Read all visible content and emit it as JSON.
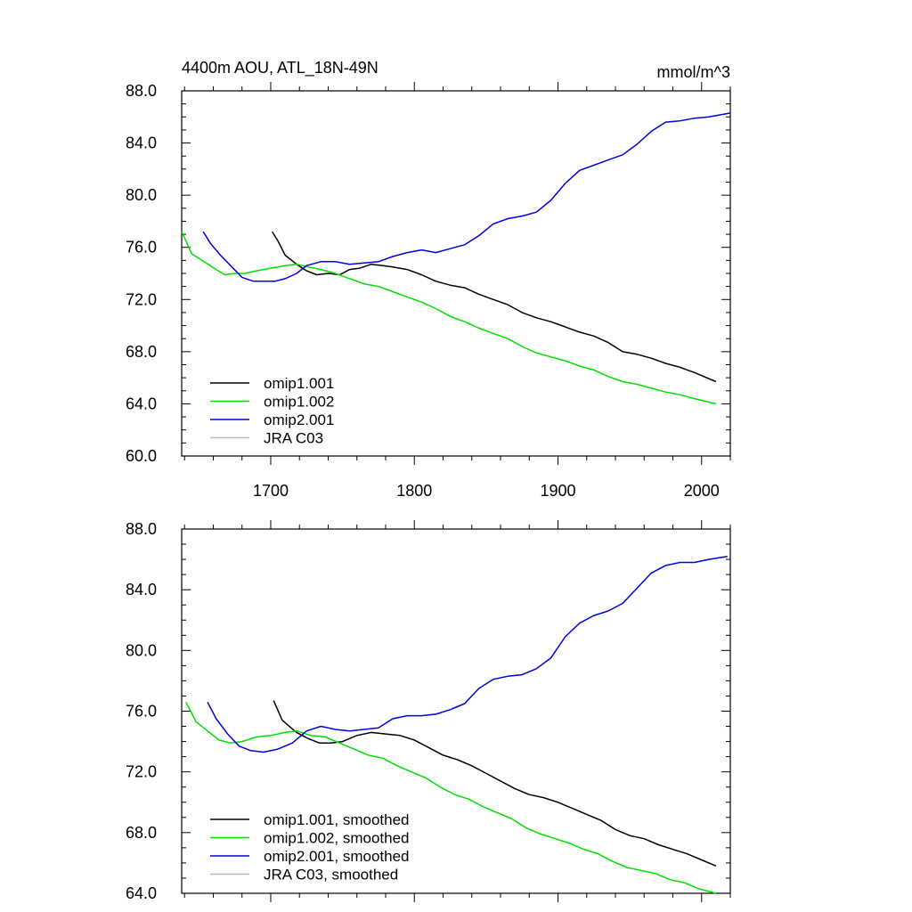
{
  "chart_data": [
    {
      "type": "line",
      "title": "4400m AOU, ATL_18N-49N",
      "units": "mmol/m^3",
      "xlim": [
        1638,
        2020
      ],
      "ylim": [
        60,
        88
      ],
      "x_ticks": [
        1700,
        1800,
        1900,
        2000
      ],
      "y_ticks": [
        "60.0",
        "64.0",
        "68.0",
        "72.0",
        "76.0",
        "80.0",
        "84.0",
        "88.0"
      ],
      "legend_position": "bottom-left",
      "series": [
        {
          "name": "omip1.001",
          "color": "#000000",
          "points": [
            [
              1701,
              77.2
            ],
            [
              1705,
              76.5
            ],
            [
              1710,
              75.4
            ],
            [
              1718,
              74.7
            ],
            [
              1725,
              74.2
            ],
            [
              1732,
              73.9
            ],
            [
              1740,
              74.0
            ],
            [
              1748,
              73.9
            ],
            [
              1755,
              74.3
            ],
            [
              1762,
              74.4
            ],
            [
              1770,
              74.7
            ],
            [
              1778,
              74.6
            ],
            [
              1785,
              74.5
            ],
            [
              1795,
              74.3
            ],
            [
              1805,
              73.9
            ],
            [
              1815,
              73.4
            ],
            [
              1825,
              73.1
            ],
            [
              1835,
              72.9
            ],
            [
              1845,
              72.4
            ],
            [
              1855,
              72.0
            ],
            [
              1865,
              71.6
            ],
            [
              1875,
              71.0
            ],
            [
              1885,
              70.6
            ],
            [
              1895,
              70.3
            ],
            [
              1905,
              69.9
            ],
            [
              1915,
              69.5
            ],
            [
              1925,
              69.2
            ],
            [
              1935,
              68.7
            ],
            [
              1945,
              68.0
            ],
            [
              1955,
              67.8
            ],
            [
              1965,
              67.5
            ],
            [
              1975,
              67.1
            ],
            [
              1985,
              66.8
            ],
            [
              1995,
              66.4
            ],
            [
              2010,
              65.7
            ]
          ]
        },
        {
          "name": "omip1.002",
          "color": "#00e000",
          "points": [
            [
              1638,
              77.2
            ],
            [
              1645,
              75.5
            ],
            [
              1655,
              74.8
            ],
            [
              1662,
              74.3
            ],
            [
              1668,
              73.9
            ],
            [
              1675,
              74.0
            ],
            [
              1682,
              74.0
            ],
            [
              1690,
              74.2
            ],
            [
              1700,
              74.4
            ],
            [
              1710,
              74.6
            ],
            [
              1718,
              74.7
            ],
            [
              1726,
              74.5
            ],
            [
              1735,
              74.3
            ],
            [
              1745,
              74.0
            ],
            [
              1755,
              73.6
            ],
            [
              1765,
              73.2
            ],
            [
              1775,
              73.0
            ],
            [
              1785,
              72.6
            ],
            [
              1795,
              72.2
            ],
            [
              1805,
              71.8
            ],
            [
              1815,
              71.3
            ],
            [
              1825,
              70.7
            ],
            [
              1835,
              70.3
            ],
            [
              1845,
              69.8
            ],
            [
              1855,
              69.4
            ],
            [
              1865,
              69.0
            ],
            [
              1875,
              68.4
            ],
            [
              1885,
              67.9
            ],
            [
              1895,
              67.6
            ],
            [
              1905,
              67.3
            ],
            [
              1915,
              66.9
            ],
            [
              1925,
              66.6
            ],
            [
              1935,
              66.1
            ],
            [
              1945,
              65.7
            ],
            [
              1955,
              65.5
            ],
            [
              1965,
              65.2
            ],
            [
              1975,
              64.9
            ],
            [
              1985,
              64.7
            ],
            [
              1995,
              64.4
            ],
            [
              2010,
              64.0
            ]
          ]
        },
        {
          "name": "omip2.001",
          "color": "#0000e0",
          "points": [
            [
              1653,
              77.2
            ],
            [
              1658,
              76.3
            ],
            [
              1665,
              75.4
            ],
            [
              1672,
              74.6
            ],
            [
              1680,
              73.7
            ],
            [
              1688,
              73.4
            ],
            [
              1695,
              73.4
            ],
            [
              1703,
              73.4
            ],
            [
              1710,
              73.6
            ],
            [
              1718,
              74.0
            ],
            [
              1725,
              74.6
            ],
            [
              1735,
              74.9
            ],
            [
              1745,
              74.9
            ],
            [
              1755,
              74.7
            ],
            [
              1765,
              74.8
            ],
            [
              1775,
              74.9
            ],
            [
              1785,
              75.3
            ],
            [
              1795,
              75.6
            ],
            [
              1805,
              75.8
            ],
            [
              1815,
              75.6
            ],
            [
              1825,
              75.9
            ],
            [
              1835,
              76.2
            ],
            [
              1845,
              76.9
            ],
            [
              1855,
              77.8
            ],
            [
              1865,
              78.2
            ],
            [
              1875,
              78.4
            ],
            [
              1885,
              78.7
            ],
            [
              1895,
              79.6
            ],
            [
              1905,
              80.9
            ],
            [
              1915,
              81.9
            ],
            [
              1925,
              82.3
            ],
            [
              1935,
              82.7
            ],
            [
              1945,
              83.1
            ],
            [
              1955,
              83.9
            ],
            [
              1965,
              84.9
            ],
            [
              1975,
              85.6
            ],
            [
              1985,
              85.7
            ],
            [
              1995,
              85.9
            ],
            [
              2005,
              86.0
            ],
            [
              2020,
              86.3
            ]
          ]
        },
        {
          "name": "JRA C03",
          "color": "#bbbbbb",
          "points": []
        }
      ]
    },
    {
      "type": "line",
      "title": "",
      "units": "",
      "xlim": [
        1638,
        2020
      ],
      "ylim": [
        64,
        88
      ],
      "x_ticks": [],
      "y_ticks": [
        "64.0",
        "68.0",
        "72.0",
        "76.0",
        "80.0",
        "84.0",
        "88.0"
      ],
      "legend_position": "bottom-left",
      "series": [
        {
          "name": "omip1.001, smoothed",
          "color": "#000000",
          "points": [
            [
              1702,
              76.7
            ],
            [
              1708,
              75.4
            ],
            [
              1718,
              74.6
            ],
            [
              1726,
              74.2
            ],
            [
              1734,
              73.9
            ],
            [
              1742,
              73.9
            ],
            [
              1750,
              74.0
            ],
            [
              1760,
              74.4
            ],
            [
              1770,
              74.6
            ],
            [
              1780,
              74.5
            ],
            [
              1790,
              74.4
            ],
            [
              1800,
              74.1
            ],
            [
              1810,
              73.6
            ],
            [
              1820,
              73.1
            ],
            [
              1830,
              72.8
            ],
            [
              1840,
              72.4
            ],
            [
              1850,
              71.9
            ],
            [
              1860,
              71.4
            ],
            [
              1870,
              70.9
            ],
            [
              1880,
              70.5
            ],
            [
              1890,
              70.3
            ],
            [
              1900,
              70.0
            ],
            [
              1910,
              69.6
            ],
            [
              1920,
              69.2
            ],
            [
              1930,
              68.8
            ],
            [
              1940,
              68.2
            ],
            [
              1950,
              67.8
            ],
            [
              1960,
              67.6
            ],
            [
              1970,
              67.2
            ],
            [
              1980,
              66.9
            ],
            [
              1990,
              66.6
            ],
            [
              2000,
              66.2
            ],
            [
              2010,
              65.8
            ]
          ]
        },
        {
          "name": "omip1.002, smoothed",
          "color": "#00e000",
          "points": [
            [
              1641,
              76.6
            ],
            [
              1648,
              75.3
            ],
            [
              1656,
              74.7
            ],
            [
              1664,
              74.1
            ],
            [
              1672,
              73.9
            ],
            [
              1680,
              74.0
            ],
            [
              1690,
              74.3
            ],
            [
              1700,
              74.4
            ],
            [
              1710,
              74.6
            ],
            [
              1718,
              74.7
            ],
            [
              1728,
              74.4
            ],
            [
              1738,
              74.3
            ],
            [
              1748,
              73.9
            ],
            [
              1758,
              73.5
            ],
            [
              1768,
              73.1
            ],
            [
              1778,
              72.9
            ],
            [
              1788,
              72.4
            ],
            [
              1798,
              72.0
            ],
            [
              1808,
              71.6
            ],
            [
              1818,
              71.0
            ],
            [
              1828,
              70.5
            ],
            [
              1838,
              70.2
            ],
            [
              1848,
              69.7
            ],
            [
              1858,
              69.3
            ],
            [
              1868,
              68.9
            ],
            [
              1878,
              68.3
            ],
            [
              1888,
              67.9
            ],
            [
              1898,
              67.6
            ],
            [
              1908,
              67.3
            ],
            [
              1918,
              66.9
            ],
            [
              1928,
              66.6
            ],
            [
              1938,
              66.1
            ],
            [
              1948,
              65.7
            ],
            [
              1958,
              65.5
            ],
            [
              1968,
              65.3
            ],
            [
              1978,
              64.9
            ],
            [
              1988,
              64.7
            ],
            [
              1998,
              64.3
            ],
            [
              2010,
              64.0
            ]
          ]
        },
        {
          "name": "omip2.001, smoothed",
          "color": "#0000e0",
          "points": [
            [
              1656,
              76.6
            ],
            [
              1662,
              75.5
            ],
            [
              1670,
              74.5
            ],
            [
              1678,
              73.7
            ],
            [
              1686,
              73.4
            ],
            [
              1695,
              73.3
            ],
            [
              1705,
              73.5
            ],
            [
              1715,
              73.9
            ],
            [
              1725,
              74.7
            ],
            [
              1735,
              75.0
            ],
            [
              1745,
              74.8
            ],
            [
              1755,
              74.7
            ],
            [
              1765,
              74.8
            ],
            [
              1775,
              74.9
            ],
            [
              1785,
              75.5
            ],
            [
              1795,
              75.7
            ],
            [
              1805,
              75.7
            ],
            [
              1815,
              75.8
            ],
            [
              1825,
              76.1
            ],
            [
              1835,
              76.5
            ],
            [
              1845,
              77.5
            ],
            [
              1855,
              78.1
            ],
            [
              1865,
              78.3
            ],
            [
              1875,
              78.4
            ],
            [
              1885,
              78.8
            ],
            [
              1895,
              79.5
            ],
            [
              1905,
              80.9
            ],
            [
              1915,
              81.8
            ],
            [
              1925,
              82.3
            ],
            [
              1935,
              82.6
            ],
            [
              1945,
              83.1
            ],
            [
              1955,
              84.1
            ],
            [
              1965,
              85.1
            ],
            [
              1975,
              85.6
            ],
            [
              1985,
              85.8
            ],
            [
              1995,
              85.8
            ],
            [
              2005,
              86.0
            ],
            [
              2018,
              86.2
            ]
          ]
        },
        {
          "name": "JRA C03, smoothed",
          "color": "#bbbbbb",
          "points": []
        }
      ]
    }
  ]
}
